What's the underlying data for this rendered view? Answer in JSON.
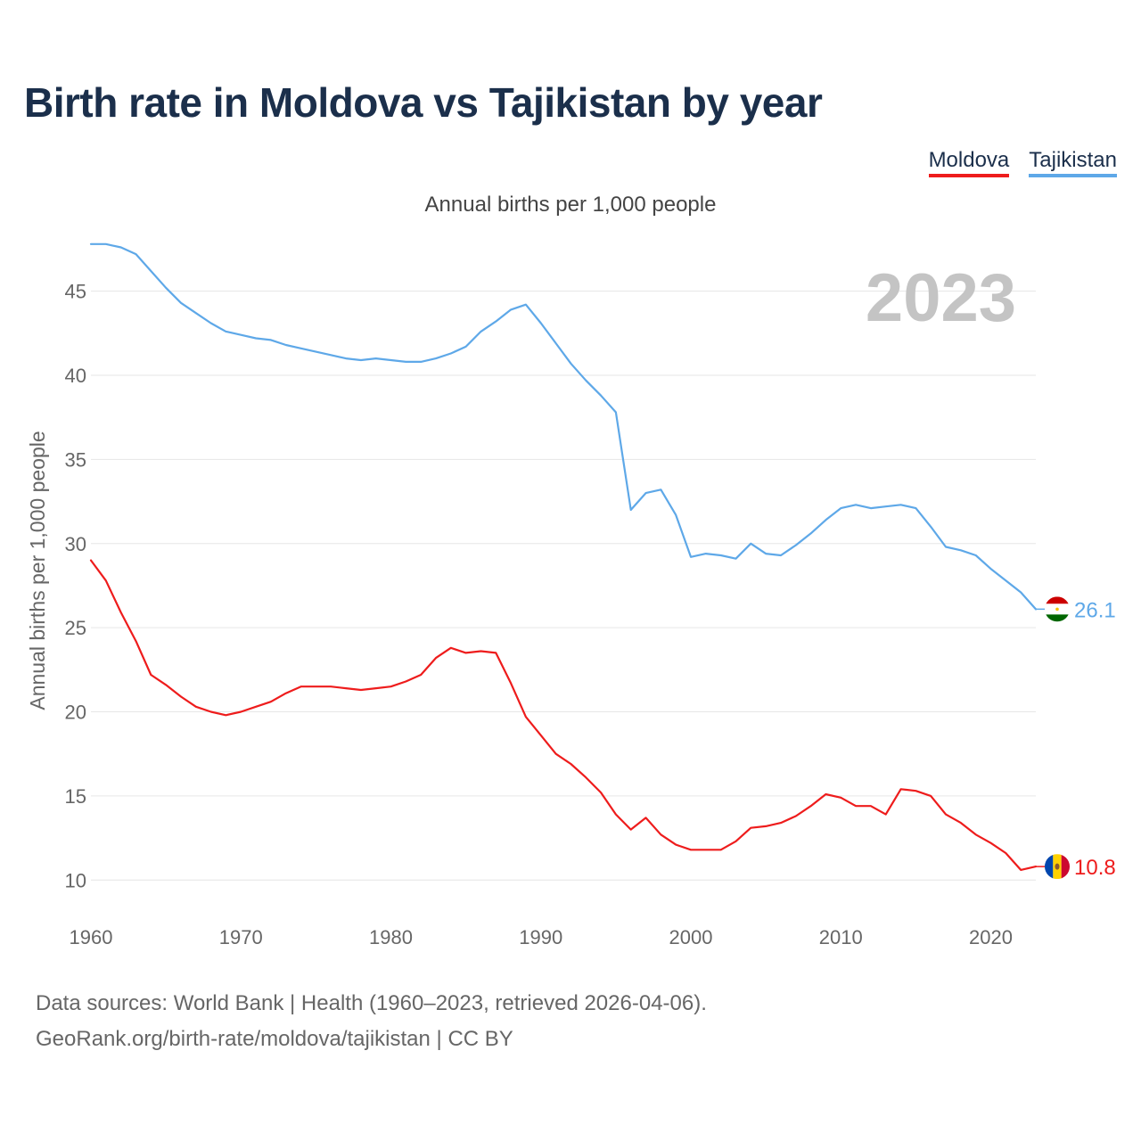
{
  "title": "Birth rate in Moldova vs Tajikistan by year",
  "subtitle": "Annual births per 1,000 people",
  "year_display": "2023",
  "legend": [
    {
      "label": "Moldova",
      "color": "#ee1c1c"
    },
    {
      "label": "Tajikistan",
      "color": "#5ea8e8"
    }
  ],
  "footer": {
    "line1": "Data sources: World Bank | Health (1960–2023, retrieved 2026-04-06).",
    "line2": "GeoRank.org/birth-rate/moldova/tajikistan | CC BY"
  },
  "flags": {
    "moldova": {
      "icon": "moldova-flag-icon",
      "colors": [
        "#0046ae",
        "#ffd200",
        "#cc092f"
      ]
    },
    "tajikistan": {
      "icon": "tajikistan-flag-icon",
      "colors": [
        "#cc0000",
        "#ffffff",
        "#006600"
      ]
    }
  },
  "chart_data": {
    "type": "line",
    "title": "Birth rate in Moldova vs Tajikistan by year",
    "xlabel": "",
    "ylabel": "Annual births per 1,000 people",
    "xlim": [
      1960,
      2023
    ],
    "ylim": [
      8,
      48
    ],
    "xticks": [
      1960,
      1970,
      1980,
      1990,
      2000,
      2010,
      2020
    ],
    "yticks": [
      10,
      15,
      20,
      25,
      30,
      35,
      40,
      45
    ],
    "grid": true,
    "legend_position": "top-right",
    "x": [
      1960,
      1961,
      1962,
      1963,
      1964,
      1965,
      1966,
      1967,
      1968,
      1969,
      1970,
      1971,
      1972,
      1973,
      1974,
      1975,
      1976,
      1977,
      1978,
      1979,
      1980,
      1981,
      1982,
      1983,
      1984,
      1985,
      1986,
      1987,
      1988,
      1989,
      1990,
      1991,
      1992,
      1993,
      1994,
      1995,
      1996,
      1997,
      1998,
      1999,
      2000,
      2001,
      2002,
      2003,
      2004,
      2005,
      2006,
      2007,
      2008,
      2009,
      2010,
      2011,
      2012,
      2013,
      2014,
      2015,
      2016,
      2017,
      2018,
      2019,
      2020,
      2021,
      2022,
      2023
    ],
    "series": [
      {
        "name": "Moldova",
        "color": "#ee1c1c",
        "end_label": "10.8",
        "values": [
          29.0,
          27.8,
          25.9,
          24.2,
          22.2,
          21.6,
          20.9,
          20.3,
          20.0,
          19.8,
          20.0,
          20.3,
          20.6,
          21.1,
          21.5,
          21.5,
          21.5,
          21.4,
          21.3,
          21.4,
          21.5,
          21.8,
          22.2,
          23.2,
          23.8,
          23.5,
          23.6,
          23.5,
          21.7,
          19.7,
          18.6,
          17.5,
          16.9,
          16.1,
          15.2,
          13.9,
          13.0,
          13.7,
          12.7,
          12.1,
          11.8,
          11.8,
          11.8,
          12.3,
          13.1,
          13.2,
          13.4,
          13.8,
          14.4,
          15.1,
          14.9,
          14.4,
          14.4,
          13.9,
          15.4,
          15.3,
          15.0,
          13.9,
          13.4,
          12.7,
          12.2,
          11.6,
          10.6,
          10.8
        ]
      },
      {
        "name": "Tajikistan",
        "color": "#5ea8e8",
        "end_label": "26.1",
        "values": [
          47.8,
          47.8,
          47.6,
          47.2,
          46.2,
          45.2,
          44.3,
          43.7,
          43.1,
          42.6,
          42.4,
          42.2,
          42.1,
          41.8,
          41.6,
          41.4,
          41.2,
          41.0,
          40.9,
          41.0,
          40.9,
          40.8,
          40.8,
          41.0,
          41.3,
          41.7,
          42.6,
          43.2,
          43.9,
          44.2,
          43.1,
          41.9,
          40.7,
          39.7,
          38.8,
          37.8,
          32.0,
          33.0,
          33.2,
          31.7,
          29.2,
          29.4,
          29.3,
          29.1,
          30.0,
          29.4,
          29.3,
          29.9,
          30.6,
          31.4,
          32.1,
          32.3,
          32.1,
          32.2,
          32.3,
          32.1,
          31.0,
          29.8,
          29.6,
          29.3,
          28.5,
          27.8,
          27.1,
          26.1
        ]
      }
    ]
  }
}
